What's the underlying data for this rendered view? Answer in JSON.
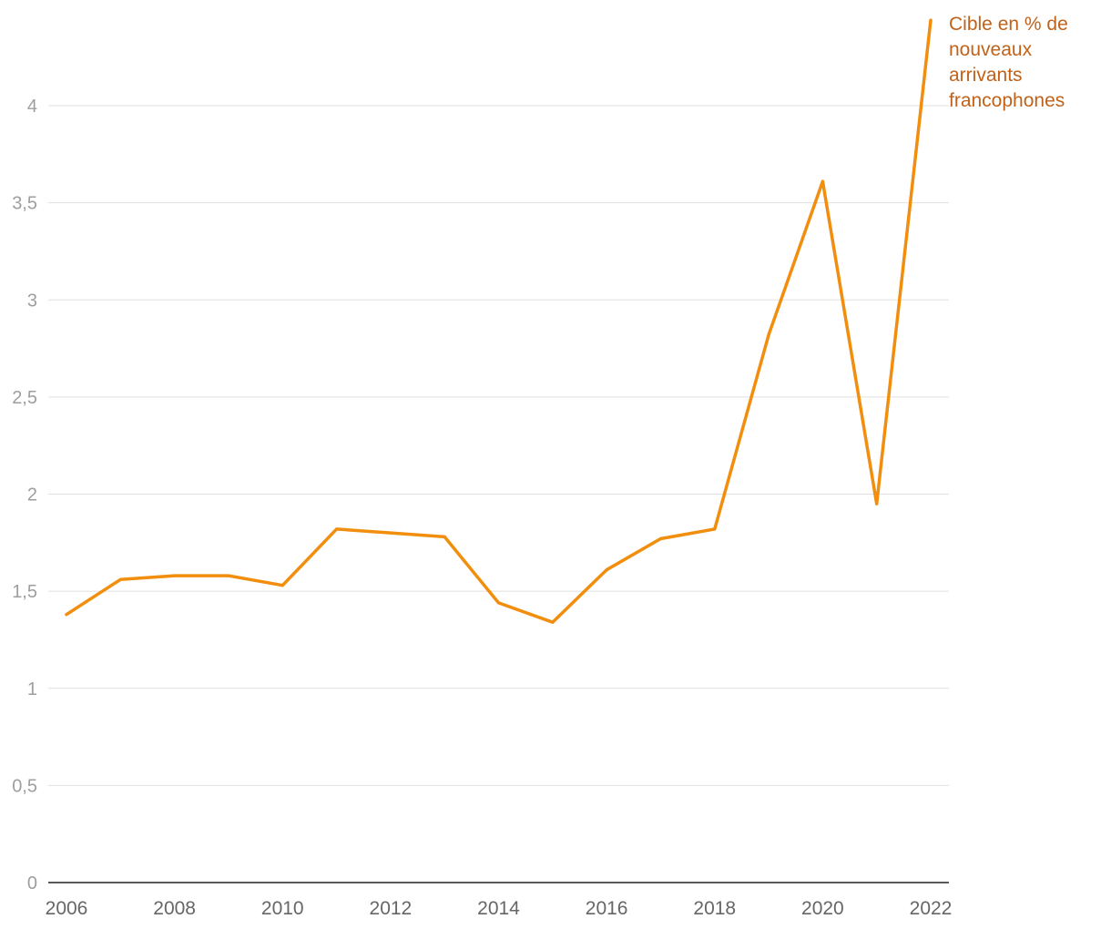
{
  "chart_data": {
    "type": "line",
    "x": [
      2006,
      2007,
      2008,
      2009,
      2010,
      2011,
      2012,
      2013,
      2014,
      2015,
      2016,
      2017,
      2018,
      2019,
      2020,
      2021,
      2022
    ],
    "series": [
      {
        "name": "Cible en % de nouveaux arrivants francophones",
        "label_lines": [
          "Cible en % de",
          "nouveaux",
          "arrivants",
          "francophones"
        ],
        "values": [
          1.38,
          1.56,
          1.58,
          1.58,
          1.53,
          1.82,
          1.8,
          1.78,
          1.44,
          1.34,
          1.61,
          1.77,
          1.82,
          2.82,
          3.61,
          1.95,
          4.44
        ],
        "color": "#f28e0e",
        "label_color": "#c0621a"
      }
    ],
    "xticks": [
      2006,
      2008,
      2010,
      2012,
      2014,
      2016,
      2018,
      2020,
      2022
    ],
    "yticks": [
      {
        "value": 0,
        "label": "0"
      },
      {
        "value": 0.5,
        "label": "0,5"
      },
      {
        "value": 1,
        "label": "1"
      },
      {
        "value": 1.5,
        "label": "1,5"
      },
      {
        "value": 2,
        "label": "2"
      },
      {
        "value": 2.5,
        "label": "2,5"
      },
      {
        "value": 3,
        "label": "3"
      },
      {
        "value": 3.5,
        "label": "3,5"
      },
      {
        "value": 4,
        "label": "4"
      }
    ],
    "xlim": [
      2006,
      2022
    ],
    "ylim": [
      0,
      4.44
    ],
    "grid": true,
    "legend": "end-of-line",
    "colors": {
      "grid": "#e0e0e0",
      "axis": "#222222",
      "ytick": "#9e9e9e",
      "xtick": "#666666"
    }
  }
}
